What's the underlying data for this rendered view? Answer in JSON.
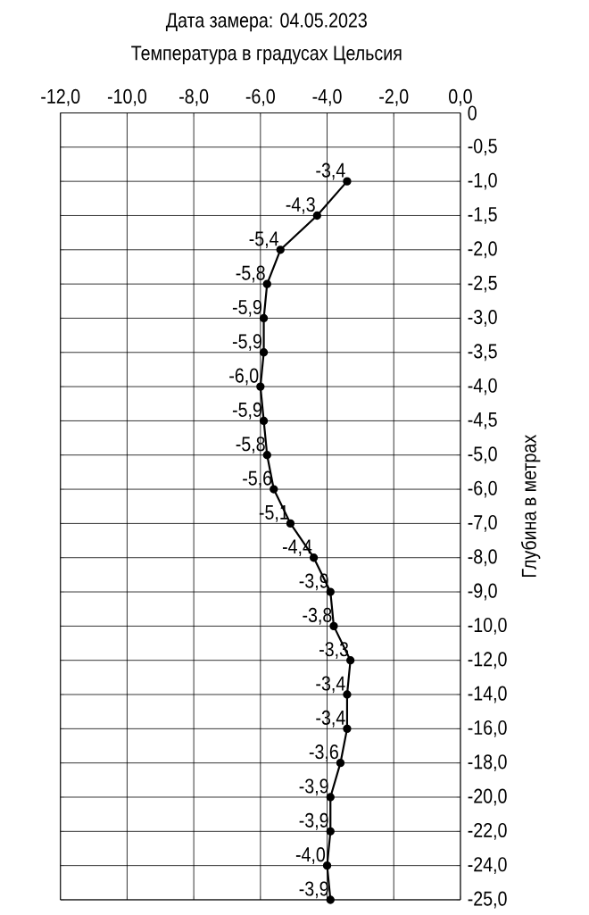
{
  "chart_data": {
    "type": "line",
    "title": "Дата замера: 04.05.2023",
    "subtitle": "Температура в градусах Цельсия",
    "ylabel": "Глубина в метрах",
    "orientation": "horizontal",
    "color": "#000000",
    "marker": "circle",
    "grid": true,
    "categories": [
      "0",
      "-0,5",
      "-1,0",
      "-1,5",
      "-2,0",
      "-2,5",
      "-3,0",
      "-3,5",
      "-4,0",
      "-4,5",
      "-5,0",
      "-6,0",
      "-7,0",
      "-8,0",
      "-9,0",
      "-10,0",
      "-12,0",
      "-14,0",
      "-16,0",
      "-18,0",
      "-20,0",
      "-22,0",
      "-24,0",
      "-25,0"
    ],
    "values": [
      null,
      null,
      -3.4,
      -4.3,
      -5.4,
      -5.8,
      -5.9,
      -5.9,
      -6.0,
      -5.9,
      -5.8,
      -5.6,
      -5.1,
      -4.4,
      -3.9,
      -3.8,
      -3.3,
      -3.4,
      -3.4,
      -3.6,
      -3.9,
      -3.9,
      -4.0,
      -3.9
    ],
    "value_labels": [
      null,
      null,
      "-3,4",
      "-4,3",
      "-5,4",
      "-5,8",
      "-5,9",
      "-5,9",
      "-6,0",
      "-5,9",
      "-5,8",
      "-5,6",
      "-5,1",
      "-4,4",
      "-3,9",
      "-3,8",
      "-3,3",
      "-3,4",
      "-3,4",
      "-3,6",
      "-3,9",
      "-3,9",
      "-4,0",
      "-3,9"
    ],
    "xlim": [
      -12,
      0
    ],
    "xticks": [
      {
        "value": -12,
        "label": "-12,0"
      },
      {
        "value": -10,
        "label": "-10,0"
      },
      {
        "value": -8,
        "label": "-8,0"
      },
      {
        "value": -6,
        "label": "-6,0"
      },
      {
        "value": -4,
        "label": "-4,0"
      },
      {
        "value": -2,
        "label": "-2,0"
      },
      {
        "value": 0,
        "label": "0,0"
      }
    ]
  }
}
